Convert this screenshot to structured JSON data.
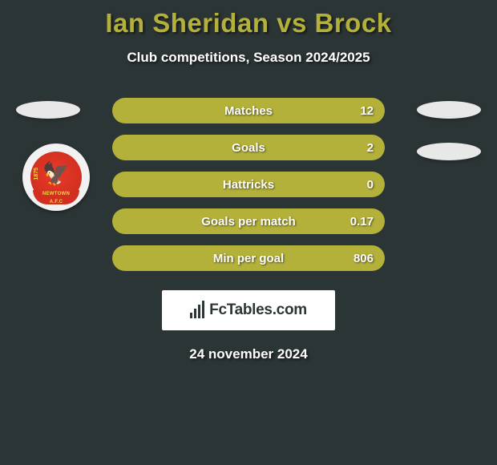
{
  "title": {
    "text": "Ian Sheridan vs Brock",
    "color": "#b3b13a",
    "fontsize": 33
  },
  "subtitle": "Club competitions, Season 2024/2025",
  "bar_color": "#b3b13a",
  "stats": [
    {
      "label": "Matches",
      "value": "12"
    },
    {
      "label": "Goals",
      "value": "2"
    },
    {
      "label": "Hattricks",
      "value": "0"
    },
    {
      "label": "Goals per match",
      "value": "0.17"
    },
    {
      "label": "Min per goal",
      "value": "806"
    }
  ],
  "crest": {
    "year": "1875",
    "name": "NEWTOWN",
    "suffix": "A.F.C"
  },
  "logo": "FcTables.com",
  "date": "24 november 2024",
  "background_color": "#2c3536",
  "text_color": "#ffffff"
}
